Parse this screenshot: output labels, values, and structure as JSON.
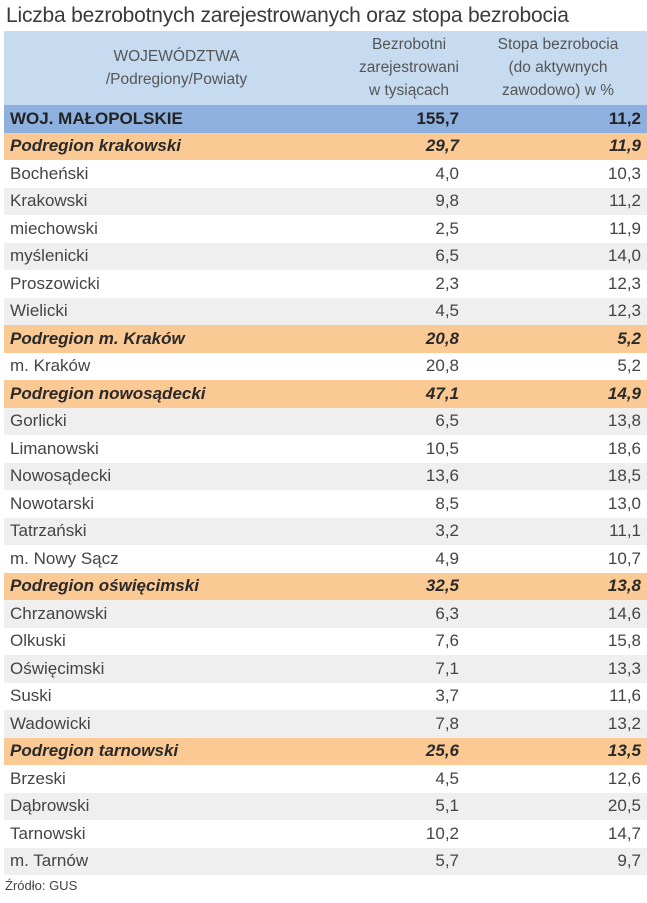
{
  "title": "Liczba bezrobotnych zarejestrowanych oraz stopa bezrobocia",
  "header": {
    "col1_line1": "WOJEWÓDZTWA",
    "col1_line2": "/Podregiony/Powiaty",
    "col2_line1": "Bezrobotni",
    "col2_line2": "zarejestrowani",
    "col2_line3": "w tysiącach",
    "col3_line1": "Stopa bezrobocia",
    "col3_line2": "(do aktywnych",
    "col3_line3": "zawodowo) w %"
  },
  "rows": [
    {
      "type": "voiv",
      "name": "WOJ. MAŁOPOLSKIE",
      "unemployed": "155,7",
      "rate": "11,2"
    },
    {
      "type": "sub",
      "name": "Podregion krakowski",
      "unemployed": "29,7",
      "rate": "11,9"
    },
    {
      "type": "white",
      "name": "Bocheński",
      "unemployed": "4,0",
      "rate": "10,3"
    },
    {
      "type": "gray",
      "name": "Krakowski",
      "unemployed": "9,8",
      "rate": "11,2"
    },
    {
      "type": "white",
      "name": "miechowski",
      "unemployed": "2,5",
      "rate": "11,9"
    },
    {
      "type": "gray",
      "name": "myślenicki",
      "unemployed": "6,5",
      "rate": "14,0"
    },
    {
      "type": "white",
      "name": "Proszowicki",
      "unemployed": "2,3",
      "rate": "12,3"
    },
    {
      "type": "gray",
      "name": "Wielicki",
      "unemployed": "4,5",
      "rate": "12,3"
    },
    {
      "type": "sub",
      "name": "Podregion m. Kraków",
      "unemployed": "20,8",
      "rate": "5,2"
    },
    {
      "type": "white",
      "name": "m. Kraków",
      "unemployed": "20,8",
      "rate": "5,2"
    },
    {
      "type": "sub",
      "name": "Podregion nowosądecki",
      "unemployed": "47,1",
      "rate": "14,9"
    },
    {
      "type": "gray",
      "name": "Gorlicki",
      "unemployed": "6,5",
      "rate": "13,8"
    },
    {
      "type": "white",
      "name": "Limanowski",
      "unemployed": "10,5",
      "rate": "18,6"
    },
    {
      "type": "gray",
      "name": "Nowosądecki",
      "unemployed": "13,6",
      "rate": "18,5"
    },
    {
      "type": "white",
      "name": "Nowotarski",
      "unemployed": "8,5",
      "rate": "13,0"
    },
    {
      "type": "gray",
      "name": "Tatrzański",
      "unemployed": "3,2",
      "rate": "11,1"
    },
    {
      "type": "white",
      "name": "m. Nowy Sącz",
      "unemployed": "4,9",
      "rate": "10,7"
    },
    {
      "type": "sub",
      "name": "Podregion oświęcimski",
      "unemployed": "32,5",
      "rate": "13,8"
    },
    {
      "type": "gray",
      "name": "Chrzanowski",
      "unemployed": "6,3",
      "rate": "14,6"
    },
    {
      "type": "white",
      "name": "Olkuski",
      "unemployed": "7,6",
      "rate": "15,8"
    },
    {
      "type": "gray",
      "name": "Oświęcimski",
      "unemployed": "7,1",
      "rate": "13,3"
    },
    {
      "type": "white",
      "name": "Suski",
      "unemployed": "3,7",
      "rate": "11,6"
    },
    {
      "type": "gray",
      "name": "Wadowicki",
      "unemployed": "7,8",
      "rate": "13,2"
    },
    {
      "type": "sub",
      "name": "Podregion tarnowski",
      "unemployed": "25,6",
      "rate": "13,5"
    },
    {
      "type": "white",
      "name": "Brzeski",
      "unemployed": "4,5",
      "rate": "12,6"
    },
    {
      "type": "gray",
      "name": "Dąbrowski",
      "unemployed": "5,1",
      "rate": "20,5"
    },
    {
      "type": "white",
      "name": "Tarnowski",
      "unemployed": "10,2",
      "rate": "14,7"
    },
    {
      "type": "gray",
      "name": "m. Tarnów",
      "unemployed": "5,7",
      "rate": "9,7"
    }
  ],
  "source": "Źródło: GUS",
  "colors": {
    "header_bg": "#c6dbf0",
    "voivodeship_bg": "#8eb0de",
    "subregion_bg": "#fbc993",
    "stripe_gray": "#efefef"
  }
}
